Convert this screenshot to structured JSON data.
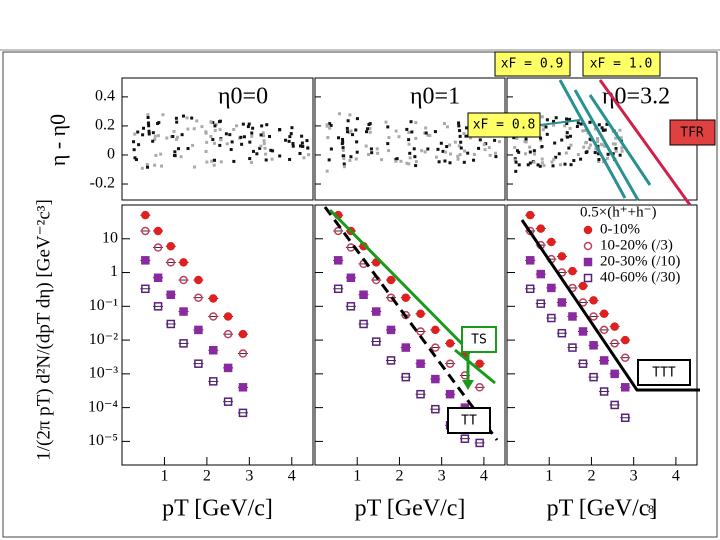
{
  "rapidity_panels": {
    "ylabel": "η - η0",
    "ylim": [
      -0.31,
      0.53
    ],
    "yticks": [
      0.4,
      0.2,
      0,
      -0.2
    ],
    "labels": [
      "η0=0",
      "η0=1",
      "η0=3.2"
    ]
  },
  "annotations": {
    "xf_09": "xF = 0.9",
    "xf_10": "xF = 1.0",
    "xf_08": "xF = 0.8",
    "tfr": "TFR",
    "ts": "TS",
    "tt": "TT",
    "ttt": "TTT"
  },
  "ylabel": "1/(2π pT) d²N/(dpT dη) [GeV⁻²c³]",
  "legend_title": "0.5×(h⁺+h⁻)",
  "page_number": "8",
  "chart_data": [
    {
      "type": "scatter",
      "xlabel": "pT [GeV/c]",
      "log_y": true,
      "xlim": [
        0,
        4.5
      ],
      "xticks": [
        1,
        2,
        3,
        4
      ],
      "ylim": [
        2e-06,
        100
      ],
      "yticks": [
        {
          "value": 10,
          "label": "10"
        },
        {
          "value": 1,
          "label": "1"
        },
        {
          "value": 0.1,
          "label": "10⁻¹"
        },
        {
          "value": 0.01,
          "label": "10⁻²"
        },
        {
          "value": 0.001,
          "label": "10⁻³"
        },
        {
          "value": 0.0001,
          "label": "10⁻⁴"
        },
        {
          "value": 1e-05,
          "label": "10⁻⁵"
        }
      ],
      "x": [
        0.55,
        0.85,
        1.15,
        1.45,
        1.8,
        2.15,
        2.5,
        2.85
      ],
      "series": [
        {
          "name": "0-10%",
          "color": "#e02020",
          "marker": "circle",
          "filled": true,
          "values": [
            50,
            17,
            6,
            2,
            0.6,
            0.17,
            0.05,
            0.015
          ]
        },
        {
          "name": "10-20% (/3)",
          "color": "#c04060",
          "marker": "circle",
          "filled": false,
          "values": [
            17,
            5.5,
            2,
            0.6,
            0.18,
            0.05,
            0.015,
            0.004
          ]
        },
        {
          "name": "20-30% (/10)",
          "color": "#8a2aa0",
          "marker": "square",
          "filled": true,
          "values": [
            2.3,
            0.7,
            0.22,
            0.07,
            0.02,
            0.005,
            0.0015,
            0.0004
          ]
        },
        {
          "name": "40-60% (/30)",
          "color": "#5a2080",
          "marker": "square",
          "filled": false,
          "values": [
            0.33,
            0.1,
            0.03,
            0.008,
            0.002,
            0.0006,
            0.00015,
            7e-05
          ]
        }
      ]
    },
    {
      "type": "scatter",
      "xlabel": "pT [GeV/c]",
      "log_y": true,
      "xlim": [
        0,
        4.5
      ],
      "xticks": [
        1,
        2,
        3,
        4
      ],
      "ylim": [
        2e-06,
        100
      ],
      "yticks": [
        10,
        1,
        0.1,
        0.01,
        0.001,
        0.0001,
        1e-05
      ],
      "x": [
        0.55,
        0.85,
        1.15,
        1.45,
        1.8,
        2.15,
        2.5,
        2.85,
        3.2,
        3.55,
        3.9
      ],
      "series": [
        {
          "name": "0-10%",
          "color": "#e02020",
          "marker": "circle",
          "filled": true,
          "values": [
            50,
            17,
            6,
            2,
            0.6,
            0.18,
            0.06,
            0.02,
            0.008,
            0.004,
            0.002
          ]
        },
        {
          "name": "10-20% (/3)",
          "color": "#c04060",
          "marker": "circle",
          "filled": false,
          "values": [
            17,
            5.5,
            1.8,
            0.6,
            0.18,
            0.055,
            0.018,
            0.006,
            0.002,
            0.0009,
            0.0004
          ]
        },
        {
          "name": "20-30% (/10)",
          "color": "#8a2aa0",
          "marker": "square",
          "filled": true,
          "values": [
            2.3,
            0.7,
            0.22,
            0.07,
            0.02,
            0.006,
            0.002,
            0.0007,
            0.00025,
            0.0001,
            5e-05
          ]
        },
        {
          "name": "40-60% (/30)",
          "color": "#5a2080",
          "marker": "square",
          "filled": false,
          "values": [
            0.33,
            0.1,
            0.03,
            0.009,
            0.0025,
            0.0008,
            0.00025,
            9e-05,
            3e-05,
            1.2e-05,
            9e-06
          ]
        }
      ]
    },
    {
      "type": "scatter",
      "xlabel": "pT [GeV/c]",
      "log_y": true,
      "xlim": [
        0,
        4.5
      ],
      "xticks": [
        1,
        2,
        3,
        4
      ],
      "ylim": [
        2e-06,
        100
      ],
      "yticks": [
        10,
        1,
        0.1,
        0.01,
        0.001,
        0.0001,
        1e-05
      ],
      "x": [
        0.55,
        0.8,
        1.05,
        1.3,
        1.55,
        1.8,
        2.05,
        2.3,
        2.55,
        2.8
      ],
      "series": [
        {
          "name": "0-10%",
          "color": "#e02020",
          "marker": "circle",
          "filled": true,
          "values": [
            50,
            20,
            8,
            3,
            1.1,
            0.4,
            0.15,
            0.06,
            0.025,
            0.01
          ]
        },
        {
          "name": "10-20% (/3)",
          "color": "#c04060",
          "marker": "circle",
          "filled": false,
          "values": [
            17,
            6.5,
            2.5,
            1,
            0.35,
            0.13,
            0.05,
            0.02,
            0.008,
            0.003
          ]
        },
        {
          "name": "20-30% (/10)",
          "color": "#8a2aa0",
          "marker": "square",
          "filled": true,
          "values": [
            2.3,
            0.9,
            0.35,
            0.13,
            0.05,
            0.018,
            0.007,
            0.0025,
            0.001,
            0.0004
          ]
        },
        {
          "name": "40-60% (/30)",
          "color": "#5a2080",
          "marker": "square",
          "filled": false,
          "values": [
            0.33,
            0.12,
            0.045,
            0.016,
            0.006,
            0.002,
            0.0008,
            0.0003,
            0.00012,
            5e-05
          ]
        }
      ]
    }
  ]
}
